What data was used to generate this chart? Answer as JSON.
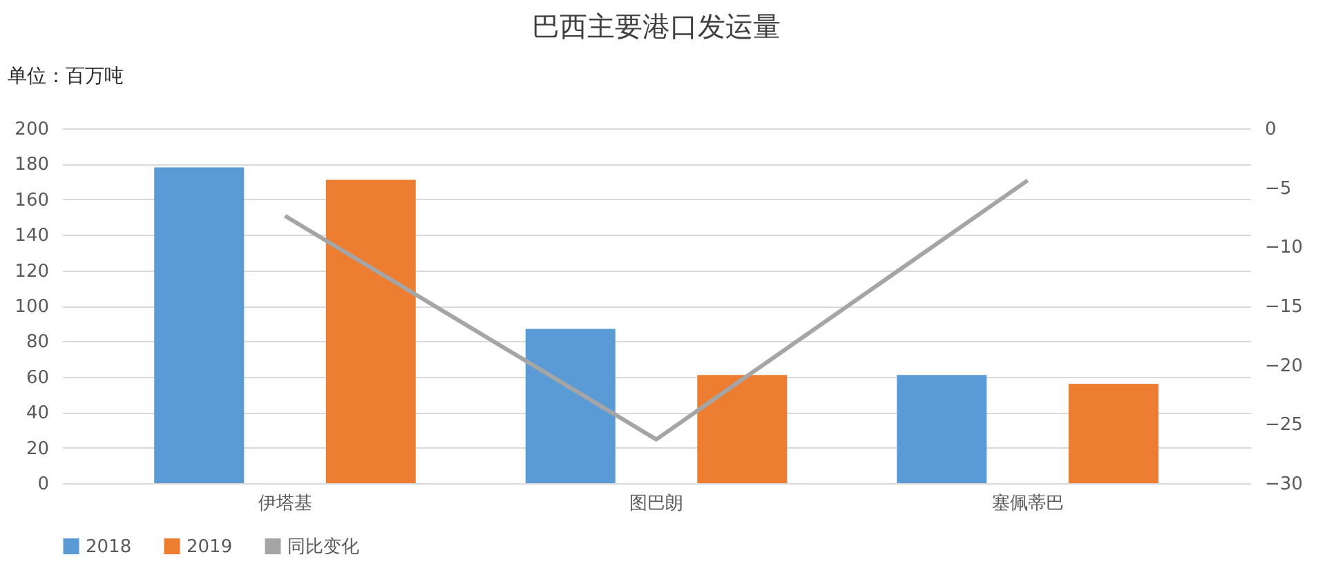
{
  "chart_data": {
    "type": "bar",
    "title": "巴西主要港口发运量",
    "ylabel": "单位：百万吨",
    "categories": [
      "伊塔基",
      "图巴朗",
      "塞佩蒂巴"
    ],
    "series": [
      {
        "name": "2018",
        "color": "#5b9bd5",
        "values": [
          178,
          87,
          61
        ]
      },
      {
        "name": "2019",
        "color": "#ed7d31",
        "values": [
          171,
          61,
          56
        ]
      },
      {
        "name": "同比变化",
        "type": "line",
        "axis": "y2",
        "color": "#a5a5a5",
        "values": [
          -7.4,
          -26.3,
          -4.4
        ]
      }
    ],
    "ylim": [
      0,
      200
    ],
    "yticks": [
      0,
      20,
      40,
      60,
      80,
      100,
      120,
      140,
      160,
      180,
      200
    ],
    "y2lim": [
      -30,
      0
    ],
    "y2ticks": [
      -30,
      -25,
      -20,
      -15,
      -10,
      -5,
      0
    ],
    "grid": "y",
    "legend": "bottom"
  }
}
